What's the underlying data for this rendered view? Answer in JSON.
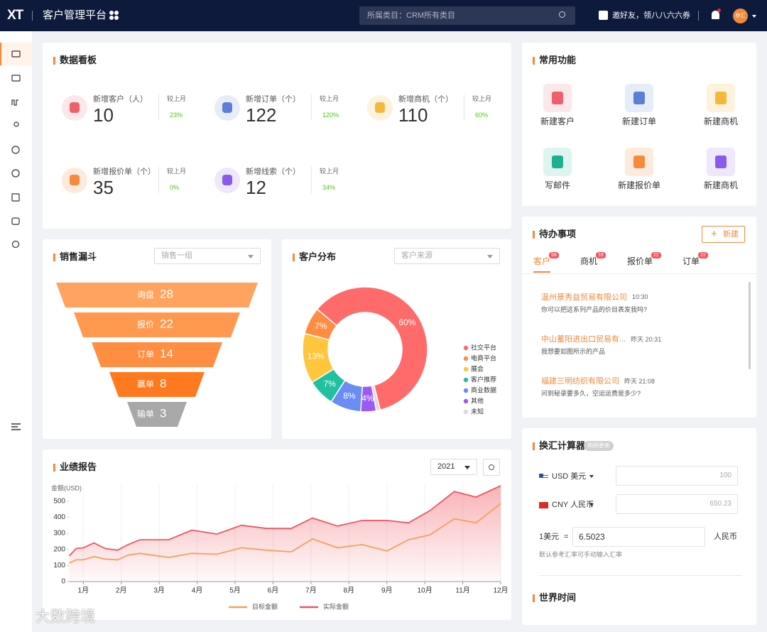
{
  "header": {
    "logo": "XT",
    "title": "客户管理平台",
    "search_placeholder": "所属类目：CRM所有类目",
    "invite": "邀好友，领八八六六券",
    "avatar": "存汇"
  },
  "dashboard": {
    "title": "数据看板",
    "stats": [
      {
        "label": "新增客户（人）",
        "value": 10,
        "compare": "较上月",
        "change": "23%"
      },
      {
        "label": "新增订单（个）",
        "value": 122,
        "compare": "较上月",
        "change": "120%"
      },
      {
        "label": "新增商机（个）",
        "value": 110,
        "compare": "较上月",
        "change": "60%"
      },
      {
        "label": "新增报价单（个）",
        "value": 35,
        "compare": "较上月",
        "change": "0%"
      },
      {
        "label": "新增线索（个）",
        "value": 12,
        "compare": "较上月",
        "change": "34%"
      }
    ]
  },
  "shortcuts": {
    "title": "常用功能",
    "items": [
      "新建客户",
      "新建订单",
      "新建商机",
      "写邮件",
      "新建报价单",
      "新建商机"
    ]
  },
  "chart_data": [
    {
      "type": "funnel",
      "title": "销售漏斗",
      "filter": "销售一组",
      "categories": [
        "询盘",
        "报价",
        "订单",
        "赢单",
        "输单"
      ],
      "values": [
        28,
        22,
        14,
        8,
        3
      ],
      "colors": [
        "#ffa35e",
        "#ff9950",
        "#ff8d42",
        "#ff7a1f",
        "#a8a8a8"
      ]
    },
    {
      "type": "pie",
      "title": "客户分布",
      "filter": "客户来源",
      "donut": true,
      "categories": [
        "社交平台",
        "电商平台",
        "展会",
        "客户推荐",
        "商业数据",
        "其他",
        "未知"
      ],
      "values": [
        60,
        7,
        13,
        7,
        8,
        4,
        1
      ],
      "value_labels": [
        "60%",
        "7%",
        "13%",
        "7%",
        "8%",
        "4%",
        null
      ],
      "colors": [
        "#ff6b6b",
        "#ff8c42",
        "#ffc53d",
        "#20c0a0",
        "#6b8cf5",
        "#9b59f5",
        "#d9d9d9"
      ]
    },
    {
      "type": "line",
      "title": "业绩报告",
      "year": "2021",
      "ylabel": "金额(USD)",
      "x": [
        0.63,
        0.81,
        1,
        1.28,
        1.58,
        1.9,
        2.18,
        2.5,
        3.25,
        3.86,
        4.52,
        5.17,
        5.83,
        6.48,
        7.04,
        7.7,
        8.35,
        9,
        9.57,
        10.13,
        10.78,
        11.35,
        12
      ],
      "xlim": [
        0.62,
        12
      ],
      "xticks": [
        {
          "value": 1,
          "label": "1月"
        },
        {
          "value": 2,
          "label": "2月"
        },
        {
          "value": 3,
          "label": "3月"
        },
        {
          "value": 4,
          "label": "4月"
        },
        {
          "value": 5,
          "label": "5月"
        },
        {
          "value": 6,
          "label": "6月"
        },
        {
          "value": 7,
          "label": "7月"
        },
        {
          "value": 8,
          "label": "8月"
        },
        {
          "value": 9,
          "label": "9月"
        },
        {
          "value": 10,
          "label": "10月"
        },
        {
          "value": 11,
          "label": "11月"
        },
        {
          "value": 12,
          "label": "12月"
        }
      ],
      "ylim": [
        0,
        600
      ],
      "yticks": [
        0,
        100,
        200,
        300,
        400,
        500
      ],
      "grid": true,
      "series": [
        {
          "name": "目标金额",
          "color": "#f5a05a",
          "values": [
            115,
            135,
            135,
            155,
            140,
            135,
            165,
            175,
            150,
            175,
            170,
            210,
            195,
            185,
            265,
            210,
            230,
            190,
            260,
            290,
            390,
            365,
            485
          ]
        },
        {
          "name": "实际金额",
          "color": "#f0555f",
          "values": [
            160,
            205,
            210,
            240,
            205,
            195,
            230,
            260,
            260,
            320,
            295,
            350,
            330,
            330,
            395,
            345,
            380,
            380,
            365,
            440,
            560,
            525,
            595
          ]
        }
      ]
    }
  ],
  "todo": {
    "title": "待办事项",
    "new_button": "新建",
    "tabs": [
      {
        "name": "客户",
        "badge": 58
      },
      {
        "name": "商机",
        "badge": 18
      },
      {
        "name": "报价单",
        "badge": 22
      },
      {
        "name": "订单",
        "badge": 22
      }
    ],
    "items": [
      {
        "company": "温州景秀益贸易有限公司",
        "time": "10:30",
        "message": "你可以把这系列产品的价目表发我吗?"
      },
      {
        "company": "中山蓄阳进出口贸易有...",
        "time": "昨天 20:31",
        "message": "我想要如图所示的产品"
      },
      {
        "company": "福建三明纺织有限公司",
        "time": "昨天 21:08",
        "message": "问到秘录要多久，空运运费是多少?"
      }
    ]
  },
  "exchange": {
    "title": "换汇计算器",
    "tag": "刚刚更新",
    "from_currency": "USD 美元",
    "from_value": 100,
    "to_currency": "CNY 人民币",
    "to_value": 650.23,
    "rate_label": "1美元",
    "equals": "=",
    "rate": 6.5023,
    "rate_unit": "人民币",
    "hint": "默认参考汇率可手动输入汇率",
    "world_time": "世界时间"
  },
  "watermark": "大数跨境"
}
